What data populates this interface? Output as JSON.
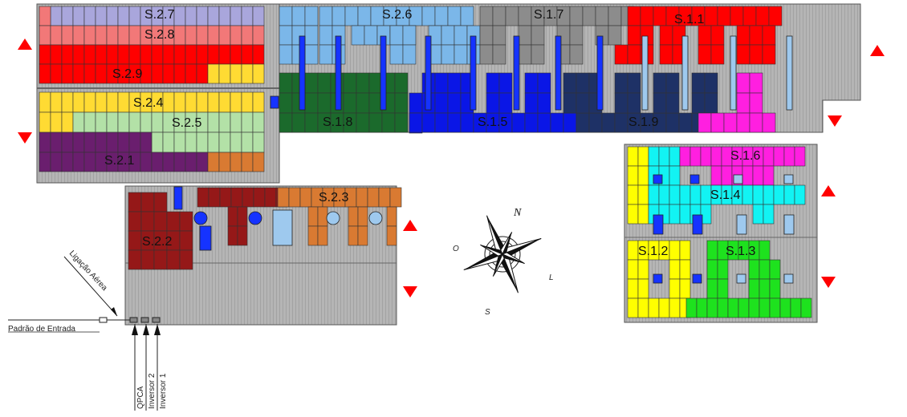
{
  "colors": {
    "roof": "#b0b0b0",
    "roof_line": "#9a9a9a",
    "panel_border": "#333333",
    "arrow": "#ff0000",
    "lavender": "#a9a6dc",
    "salmon": "#f27878",
    "red": "#ff0000",
    "yellow": "#ffdb33",
    "light_green": "#b3e1a7",
    "purple": "#6a1e6e",
    "orange": "#d97a32",
    "sky": "#7bb7e9",
    "gray": "#8c8c8c",
    "dark_green": "#1b6a2c",
    "blue": "#0a16e6",
    "navy": "#1e3166",
    "magenta": "#ff1fe0",
    "cyan": "#12f3f3",
    "bright_yellow": "#ffff00",
    "green": "#1ee21e",
    "maroon": "#951818",
    "equip_blue": "#1533ff",
    "equip_light": "#9ec9ee"
  },
  "strings": [
    {
      "id": "S.2.7",
      "color": "lavender"
    },
    {
      "id": "S.2.8",
      "color": "salmon"
    },
    {
      "id": "S.2.9",
      "color": "red"
    },
    {
      "id": "S.2.4",
      "color": "yellow"
    },
    {
      "id": "S.2.5",
      "color": "light_green"
    },
    {
      "id": "S.2.1",
      "color": "purple"
    },
    {
      "id": "S.2.6",
      "color": "sky"
    },
    {
      "id": "S.1.7",
      "color": "gray"
    },
    {
      "id": "S.1.1",
      "color": "red"
    },
    {
      "id": "S.1.8",
      "color": "dark_green"
    },
    {
      "id": "S.1.5",
      "color": "blue"
    },
    {
      "id": "S.1.9",
      "color": "navy"
    },
    {
      "id": "S.1.6",
      "color": "magenta"
    },
    {
      "id": "S.1.4",
      "color": "cyan"
    },
    {
      "id": "S.1.2",
      "color": "bright_yellow"
    },
    {
      "id": "S.1.3",
      "color": "green"
    },
    {
      "id": "S.2.3",
      "color": "orange"
    },
    {
      "id": "S.2.2",
      "color": "maroon"
    }
  ],
  "compass": {
    "north": "N",
    "south": "S",
    "east": "L",
    "west": "O"
  },
  "connections": {
    "entrance": "Padrão de Entrada",
    "aerial": "Ligação Aérea",
    "qpca": "QPCA",
    "inverter_2": "Inversor 2",
    "inverter_1": "Inversor 1"
  }
}
